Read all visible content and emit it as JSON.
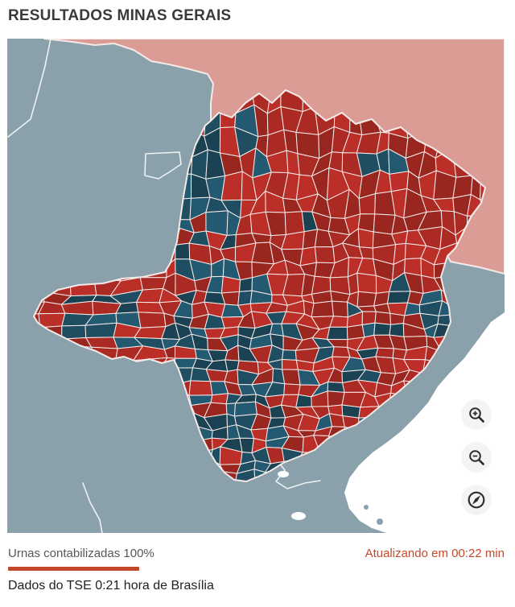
{
  "title": "RESULTADOS MINAS GERAIS",
  "map": {
    "aria_label": "Mapa dos resultados por município em Minas Gerais",
    "colors": {
      "red_municipality": "#ab2a24",
      "blue_municipality": "#1f4e62",
      "neighbor_red_state": "#db9c96",
      "neighbor_gray_state": "#8aa0ab",
      "ocean": "#ffffff",
      "border": "#f3e9e7"
    },
    "controls": {
      "zoom_in_icon": "magnifier-plus",
      "zoom_out_icon": "magnifier-minus",
      "compass_icon": "compass"
    }
  },
  "footer": {
    "counted_label": "Urnas contabilizadas 100%",
    "progress_percent": 100,
    "updating_label": "Atualizando em 00:22 min",
    "source_label": "Dados do TSE 0:21 hora de Brasília"
  }
}
